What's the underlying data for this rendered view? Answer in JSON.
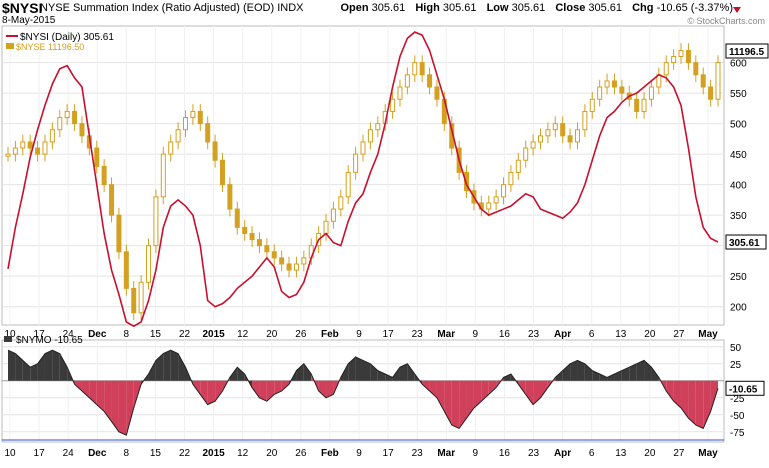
{
  "header": {
    "symbol": "$NYSI",
    "description": "NYSE Summation Index (Ratio Adjusted) (EOD)",
    "exchange": "INDX",
    "date": "8-May-2015",
    "open_label": "Open",
    "open": "305.61",
    "high_label": "High",
    "high": "305.61",
    "low_label": "Low",
    "low": "305.61",
    "close_label": "Close",
    "close": "305.61",
    "chg_label": "Chg",
    "chg": "-10.65 (-3.37%)",
    "watermark": "© StockCharts.com"
  },
  "colors": {
    "nysi": "#c8102e",
    "candle": "#d4a020",
    "nymo_pos": "#3a3a3a",
    "nymo_neg": "#d0405a"
  },
  "chart_data": [
    {
      "type": "line",
      "panel": "top",
      "legend": [
        {
          "label": "$NYSI (Daily) 305.61",
          "color": "#c8102e"
        },
        {
          "label": "$NYSE 11196.50",
          "color": "#d4a020"
        }
      ],
      "ylim": [
        170,
        660
      ],
      "yticks": [
        200,
        250,
        300,
        350,
        400,
        450,
        500,
        550,
        600
      ],
      "last_labels": {
        "nyse": "11196.5",
        "nysi": "305.61"
      },
      "x_ticks": [
        "10",
        "17",
        "24",
        "Dec",
        "8",
        "15",
        "22",
        "2015",
        "12",
        "20",
        "26",
        "Feb",
        "9",
        "17",
        "23",
        "Mar",
        "9",
        "16",
        "23",
        "Apr",
        "6",
        "13",
        "20",
        "27",
        "May"
      ],
      "series": [
        {
          "name": "$NYSI (Daily) 305.61",
          "values": [
            262,
            330,
            385,
            445,
            490,
            530,
            565,
            590,
            595,
            575,
            560,
            480,
            400,
            320,
            260,
            220,
            175,
            168,
            175,
            210,
            260,
            330,
            365,
            375,
            365,
            350,
            300,
            210,
            200,
            205,
            215,
            230,
            240,
            250,
            265,
            280,
            265,
            225,
            215,
            220,
            240,
            280,
            310,
            320,
            305,
            300,
            340,
            370,
            385,
            420,
            450,
            500,
            560,
            610,
            640,
            650,
            645,
            620,
            580,
            540,
            490,
            440,
            400,
            380,
            360,
            350,
            355,
            360,
            365,
            375,
            385,
            380,
            360,
            355,
            350,
            345,
            355,
            370,
            400,
            440,
            480,
            510,
            520,
            535,
            545,
            550,
            560,
            570,
            580,
            575,
            560,
            530,
            460,
            380,
            330,
            312,
            306
          ]
        },
        {
          "name": "$NYSE 11196.50",
          "values": [
            450,
            460,
            470,
            460,
            450,
            470,
            490,
            510,
            520,
            500,
            480,
            460,
            430,
            400,
            350,
            290,
            230,
            190,
            240,
            300,
            380,
            450,
            470,
            490,
            510,
            520,
            500,
            470,
            440,
            400,
            360,
            330,
            320,
            310,
            300,
            290,
            280,
            270,
            260,
            270,
            280,
            300,
            320,
            340,
            360,
            380,
            420,
            450,
            470,
            490,
            500,
            520,
            540,
            560,
            580,
            600,
            580,
            560,
            540,
            500,
            460,
            420,
            390,
            370,
            360,
            370,
            380,
            400,
            420,
            440,
            460,
            470,
            480,
            490,
            500,
            480,
            470,
            490,
            520,
            540,
            560,
            570,
            560,
            550,
            540,
            520,
            540,
            560,
            580,
            600,
            610,
            620,
            600,
            580,
            560,
            540,
            600
          ]
        }
      ]
    },
    {
      "type": "area",
      "panel": "bottom",
      "legend": [
        {
          "label": "$NYMO -10.65",
          "color": "#3a3a3a"
        }
      ],
      "ylim": [
        -90,
        60
      ],
      "yticks": [
        50,
        25,
        -25,
        -50,
        -75
      ],
      "last_labels": {
        "nymo": "-10.65"
      },
      "series": [
        {
          "name": "$NYMO -10.65",
          "values": [
            45,
            40,
            30,
            20,
            25,
            40,
            45,
            40,
            20,
            -5,
            -15,
            -25,
            -35,
            -45,
            -60,
            -75,
            -80,
            -40,
            -5,
            10,
            30,
            40,
            45,
            40,
            20,
            -5,
            -20,
            -35,
            -30,
            -15,
            5,
            20,
            10,
            -10,
            -25,
            -30,
            -20,
            -15,
            -5,
            15,
            25,
            10,
            -15,
            -25,
            -20,
            5,
            25,
            35,
            30,
            25,
            15,
            10,
            5,
            20,
            25,
            10,
            -5,
            -15,
            -25,
            -45,
            -65,
            -70,
            -55,
            -40,
            -30,
            -20,
            -10,
            5,
            10,
            -5,
            -20,
            -35,
            -25,
            -10,
            5,
            15,
            25,
            30,
            25,
            15,
            10,
            5,
            10,
            15,
            20,
            25,
            30,
            20,
            5,
            -15,
            -30,
            -40,
            -55,
            -65,
            -70,
            -45,
            -11
          ]
        }
      ]
    }
  ]
}
